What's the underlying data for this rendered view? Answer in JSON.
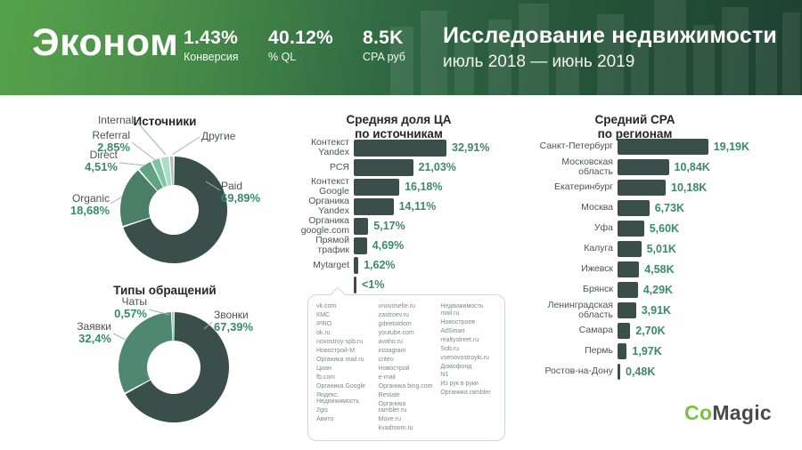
{
  "header": {
    "segment": "Эконом",
    "stats": [
      {
        "value": "1.43%",
        "label": "Конверсия"
      },
      {
        "value": "40.12%",
        "label": "% QL"
      },
      {
        "value": "8.5K",
        "label": "CPA руб"
      }
    ],
    "title": "Исследование недвижимости",
    "period": "июль 2018 — июнь 2019"
  },
  "colors": {
    "header_gradient_start": "#56A14B",
    "header_gradient_end": "#1E4132",
    "dark": "#3A4F4A",
    "accent_green_text": "#3A8A6D",
    "logo_green": "#7CC142",
    "logo_grey": "#4A4A4D"
  },
  "chart_data": [
    {
      "type": "pie",
      "subtype": "donut",
      "title": "Источники",
      "segments": [
        {
          "label": "Paid",
          "value": 69.89,
          "display": "69,89%",
          "color": "#3A4F4A"
        },
        {
          "label": "Organic",
          "value": 18.68,
          "display": "18,68%",
          "color": "#4A7E66"
        },
        {
          "label": "Direct",
          "value": 4.51,
          "display": "4,51%",
          "color": "#5FA381"
        },
        {
          "label": "Referral",
          "value": 2.85,
          "display": "2,85%",
          "color": "#7EC3A4"
        },
        {
          "label": "Internal",
          "value": 2.77,
          "display": "",
          "color": "#A9DEC6"
        },
        {
          "label": "Другие",
          "value": 1.3,
          "display": "",
          "color": "#B6BCB9"
        }
      ]
    },
    {
      "type": "pie",
      "subtype": "donut",
      "title": "Типы обращений",
      "segments": [
        {
          "label": "Звонки",
          "value": 67.39,
          "display": "67,39%",
          "color": "#3A4F4A"
        },
        {
          "label": "Заявки",
          "value": 32.4,
          "display": "32,4%",
          "color": "#4E8870"
        },
        {
          "label": "Чаты",
          "value": 0.57,
          "display": "0,57%",
          "color": "#7EC3A4"
        }
      ]
    },
    {
      "type": "bar",
      "orientation": "horizontal",
      "title": "Средняя доля ЦА по источникам",
      "title_lines": [
        "Средняя доля ЦА",
        "по источникам"
      ],
      "categories": [
        "Контекст Yandex",
        "РСЯ",
        "Контекст Google",
        "Органика Yandex",
        "Органика google.com",
        "Прямой трафик",
        "Mytarget",
        ""
      ],
      "values": [
        32.91,
        21.03,
        16.18,
        14.11,
        5.17,
        4.69,
        1.62,
        0.9
      ],
      "display_values": [
        "32,91%",
        "21,03%",
        "16,18%",
        "14,11%",
        "5,17%",
        "4,69%",
        "1,62%",
        "<1%"
      ],
      "unit": "%"
    },
    {
      "type": "bar",
      "orientation": "horizontal",
      "title": "Средний CPA по регионам",
      "title_lines": [
        "Средний CPA",
        "по регионам"
      ],
      "categories": [
        "Санкт-Петербург",
        "Московская область",
        "Екатеринбург",
        "Москва",
        "Уфа",
        "Калуга",
        "Ижевск",
        "Брянск",
        "Ленинградская область",
        "Самара",
        "Пермь",
        "Ростов-на-Дону"
      ],
      "values": [
        19.19,
        10.84,
        10.18,
        6.73,
        5.6,
        5.01,
        4.58,
        4.29,
        3.91,
        2.7,
        1.97,
        0.48
      ],
      "display_values": [
        "19,19K",
        "10,84K",
        "10,18K",
        "6,73K",
        "5,60K",
        "5,01K",
        "4,58K",
        "4,29K",
        "3,91K",
        "2,70K",
        "1,97K",
        "0,48K"
      ],
      "unit": "K"
    }
  ],
  "small_sources": {
    "callout_label": "<1%",
    "columns": [
      [
        "vk.com",
        "КМС",
        "IPRO",
        "ok.ru",
        "novostroy-spb.ru",
        "Новострой-М",
        "Органика mail.ru",
        "Циан",
        "fb.com",
        "Органика Google",
        "Яндекс. Недвижимость",
        "2gis",
        "Авито"
      ],
      [
        "vnovoselie.ru",
        "zastroev.ru",
        "gdeetotdom",
        "youtube.com",
        "avaho.ru",
        "instagram",
        "criteo",
        "Новострой",
        "e-mail",
        "Органика bing.com",
        "Restate",
        "Органика rambler.ru",
        "Move.ru",
        "kvadroom.ru"
      ],
      [
        "Недвижимость mail.ru",
        "Новостроев",
        "AdSmart",
        "realtystreet.ru",
        "Sob.ru",
        "vsenovostroyki.ru",
        "Домофонд",
        "N1",
        "Из рук в руки",
        "Органика rambler"
      ]
    ]
  },
  "logo": {
    "part1": "Co",
    "part2": "Magic"
  }
}
